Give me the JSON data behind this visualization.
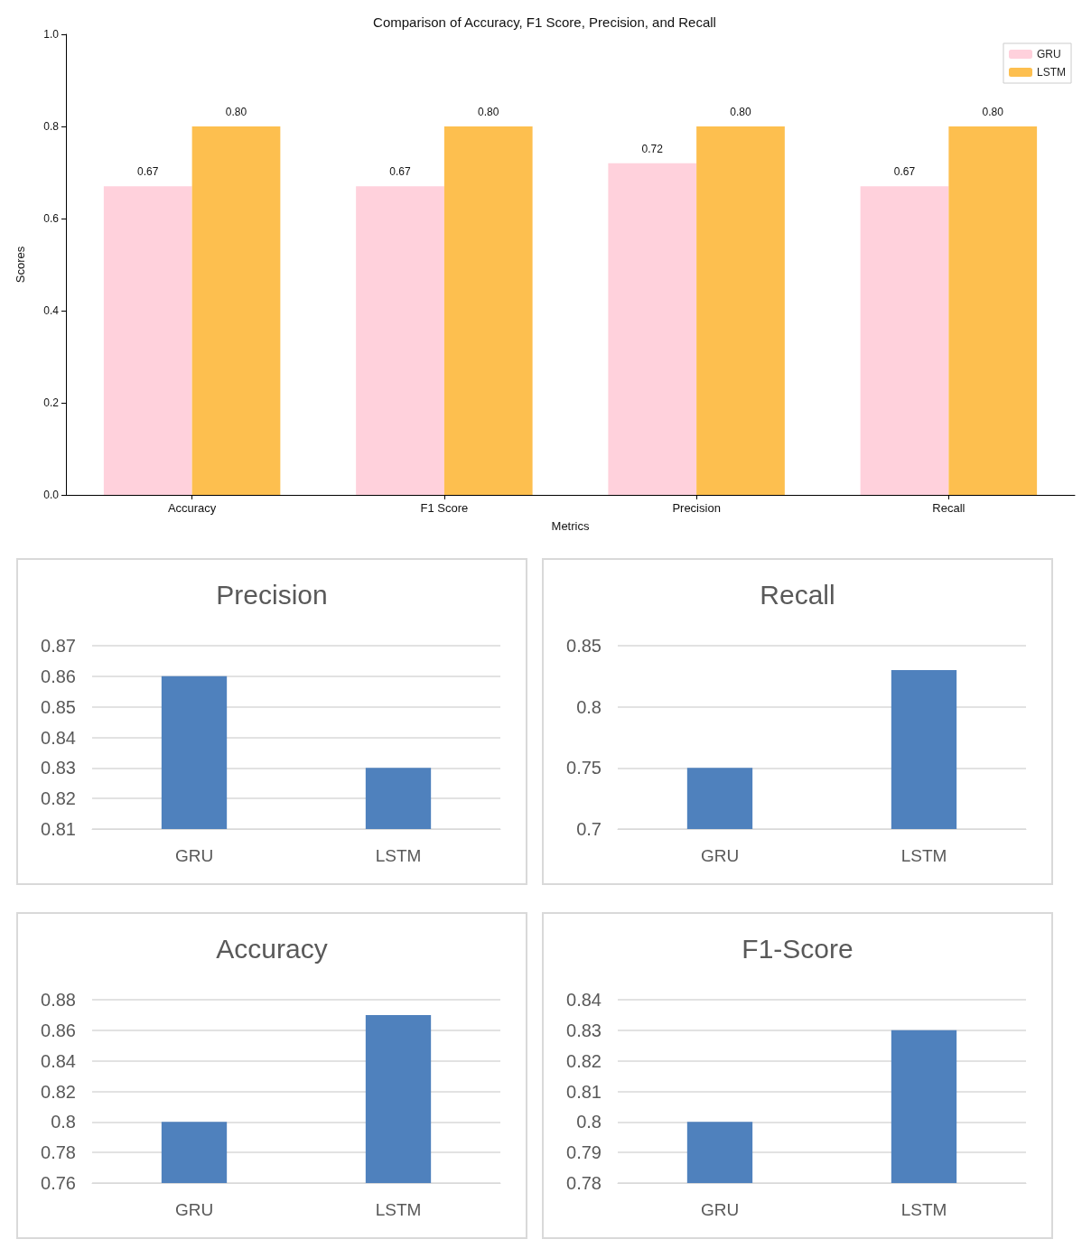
{
  "chart_data": [
    {
      "type": "bar",
      "title": "Comparison of Accuracy, F1 Score, Precision, and Recall",
      "xlabel": "Metrics",
      "ylabel": "Scores",
      "categories": [
        "Accuracy",
        "F1 Score",
        "Precision",
        "Recall"
      ],
      "series": [
        {
          "name": "GRU",
          "color": "#ffd1dc",
          "values": [
            0.67,
            0.67,
            0.72,
            0.67
          ],
          "value_labels": [
            "0.67",
            "0.67",
            "0.72",
            "0.67"
          ]
        },
        {
          "name": "LSTM",
          "color": "#fdbf4f",
          "values": [
            0.8,
            0.8,
            0.8,
            0.8
          ],
          "value_labels": [
            "0.80",
            "0.80",
            "0.80",
            "0.80"
          ]
        }
      ],
      "ylim": [
        0,
        1
      ],
      "yticks": [
        {
          "value": 0,
          "label": "0.0"
        },
        0.2,
        0.4,
        0.6,
        0.8,
        {
          "value": 1,
          "label": "1.0"
        }
      ],
      "grid": false,
      "legend": "top right"
    },
    {
      "type": "bar",
      "title": "Precision",
      "categories": [
        "GRU",
        "LSTM"
      ],
      "values": [
        0.86,
        0.83
      ],
      "color": "#4f81bd",
      "ylim": [
        0.81,
        0.87
      ],
      "yticks": [
        0.81,
        0.82,
        0.83,
        0.84,
        0.85,
        0.86,
        0.87
      ],
      "grid": "y"
    },
    {
      "type": "bar",
      "title": "Recall",
      "categories": [
        "GRU",
        "LSTM"
      ],
      "values": [
        0.75,
        0.83
      ],
      "color": "#4f81bd",
      "ylim": [
        0.7,
        0.85
      ],
      "yticks": [
        0.7,
        0.75,
        0.8,
        0.85
      ],
      "grid": "y"
    },
    {
      "type": "bar",
      "title": "Accuracy",
      "categories": [
        "GRU",
        "LSTM"
      ],
      "values": [
        0.8,
        0.87
      ],
      "color": "#4f81bd",
      "ylim": [
        0.76,
        0.88
      ],
      "yticks": [
        0.76,
        0.78,
        0.8,
        0.82,
        0.84,
        0.86,
        0.88
      ],
      "grid": "y"
    },
    {
      "type": "bar",
      "title": "F1-Score",
      "categories": [
        "GRU",
        "LSTM"
      ],
      "values": [
        0.8,
        0.83
      ],
      "color": "#4f81bd",
      "ylim": [
        0.78,
        0.84
      ],
      "yticks": [
        0.78,
        0.79,
        0.8,
        0.81,
        0.82,
        0.83,
        0.84
      ],
      "grid": "y"
    }
  ]
}
